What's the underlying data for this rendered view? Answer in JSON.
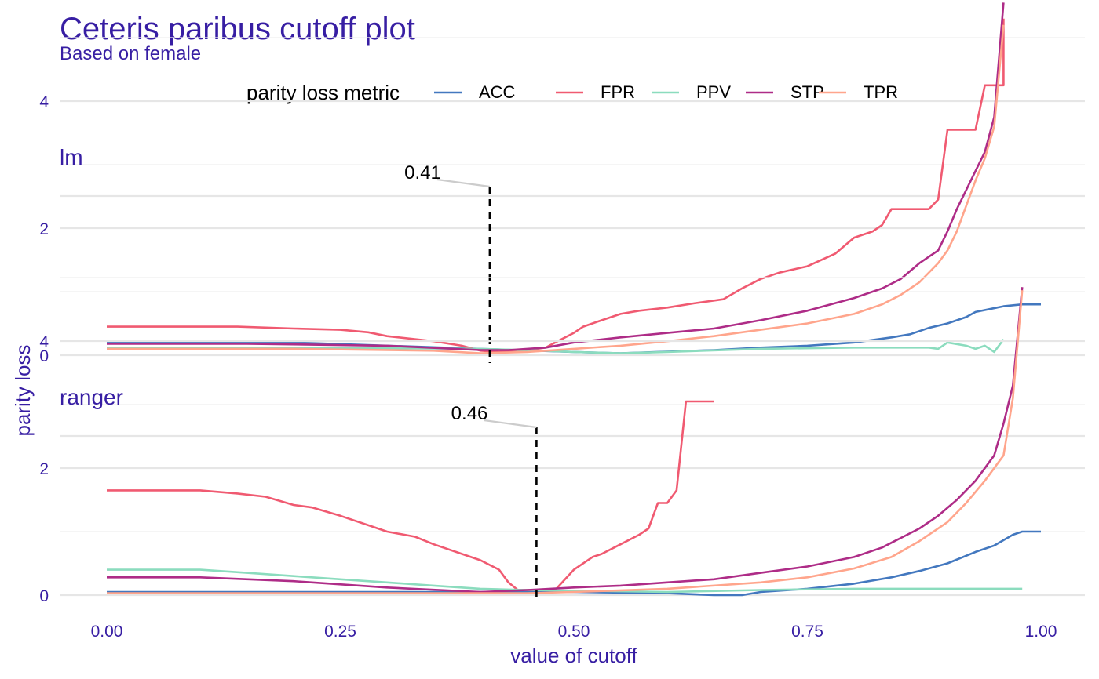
{
  "chart_data": {
    "type": "line",
    "title": "Ceteris paribus cutoff plot",
    "subtitle": "Based on female",
    "xlabel": "value of cutoff",
    "ylabel": "parity loss",
    "xlim": [
      0,
      1
    ],
    "ylim": [
      0,
      5.5
    ],
    "x_ticks": [
      "0.00",
      "0.25",
      "0.50",
      "0.75",
      "1.00"
    ],
    "y_ticks": [
      "0",
      "2",
      "4"
    ],
    "grid": true,
    "legend": {
      "title": "parity loss metric",
      "position": "top",
      "entries": [
        "ACC",
        "FPR",
        "PPV",
        "STP",
        "TPR"
      ]
    },
    "colors": {
      "ACC": "#4378bf",
      "FPR": "#f05a71",
      "PPV": "#8bdcbe",
      "STP": "#ae2c87",
      "TPR": "#ffa58c",
      "cutoff_line": "#000000",
      "annotation_leader": "#cccccc",
      "text": "#371ea3"
    },
    "panels": [
      {
        "label": "lm",
        "cutoff": 0.41,
        "cutoff_label": "0.41",
        "series": [
          {
            "name": "ACC",
            "points": [
              [
                0.0,
                0.2
              ],
              [
                0.2,
                0.2
              ],
              [
                0.4,
                0.1
              ],
              [
                0.5,
                0.05
              ],
              [
                0.55,
                0.03
              ],
              [
                0.65,
                0.08
              ],
              [
                0.7,
                0.12
              ],
              [
                0.75,
                0.15
              ],
              [
                0.8,
                0.2
              ],
              [
                0.84,
                0.28
              ],
              [
                0.86,
                0.33
              ],
              [
                0.88,
                0.43
              ],
              [
                0.9,
                0.5
              ],
              [
                0.92,
                0.6
              ],
              [
                0.93,
                0.68
              ],
              [
                0.96,
                0.77
              ],
              [
                0.98,
                0.8
              ],
              [
                1.0,
                0.8
              ]
            ]
          },
          {
            "name": "FPR",
            "points": [
              [
                0.0,
                0.45
              ],
              [
                0.1,
                0.45
              ],
              [
                0.14,
                0.45
              ],
              [
                0.2,
                0.42
              ],
              [
                0.25,
                0.4
              ],
              [
                0.28,
                0.36
              ],
              [
                0.3,
                0.3
              ],
              [
                0.35,
                0.22
              ],
              [
                0.38,
                0.15
              ],
              [
                0.4,
                0.07
              ],
              [
                0.42,
                0.05
              ],
              [
                0.45,
                0.08
              ],
              [
                0.47,
                0.12
              ],
              [
                0.48,
                0.2
              ],
              [
                0.5,
                0.35
              ],
              [
                0.51,
                0.45
              ],
              [
                0.53,
                0.55
              ],
              [
                0.55,
                0.65
              ],
              [
                0.57,
                0.7
              ],
              [
                0.6,
                0.75
              ],
              [
                0.63,
                0.82
              ],
              [
                0.66,
                0.88
              ],
              [
                0.68,
                1.05
              ],
              [
                0.7,
                1.2
              ],
              [
                0.72,
                1.3
              ],
              [
                0.75,
                1.4
              ],
              [
                0.78,
                1.6
              ],
              [
                0.8,
                1.85
              ],
              [
                0.82,
                1.95
              ],
              [
                0.83,
                2.05
              ],
              [
                0.84,
                2.3
              ],
              [
                0.88,
                2.3
              ],
              [
                0.89,
                2.45
              ],
              [
                0.9,
                3.55
              ],
              [
                0.93,
                3.55
              ],
              [
                0.94,
                4.25
              ],
              [
                0.96,
                4.25
              ],
              [
                0.96,
                5.3
              ]
            ]
          },
          {
            "name": "PPV",
            "points": [
              [
                0.0,
                0.12
              ],
              [
                0.2,
                0.12
              ],
              [
                0.4,
                0.1
              ],
              [
                0.45,
                0.08
              ],
              [
                0.5,
                0.05
              ],
              [
                0.55,
                0.03
              ],
              [
                0.6,
                0.05
              ],
              [
                0.7,
                0.1
              ],
              [
                0.8,
                0.12
              ],
              [
                0.88,
                0.12
              ],
              [
                0.89,
                0.1
              ],
              [
                0.9,
                0.2
              ],
              [
                0.92,
                0.15
              ],
              [
                0.93,
                0.1
              ],
              [
                0.94,
                0.15
              ],
              [
                0.95,
                0.05
              ],
              [
                0.96,
                0.25
              ]
            ]
          },
          {
            "name": "STP",
            "points": [
              [
                0.0,
                0.18
              ],
              [
                0.15,
                0.18
              ],
              [
                0.3,
                0.15
              ],
              [
                0.4,
                0.08
              ],
              [
                0.43,
                0.08
              ],
              [
                0.47,
                0.12
              ],
              [
                0.5,
                0.2
              ],
              [
                0.55,
                0.28
              ],
              [
                0.6,
                0.35
              ],
              [
                0.65,
                0.42
              ],
              [
                0.7,
                0.55
              ],
              [
                0.75,
                0.7
              ],
              [
                0.8,
                0.9
              ],
              [
                0.83,
                1.05
              ],
              [
                0.85,
                1.2
              ],
              [
                0.87,
                1.45
              ],
              [
                0.89,
                1.65
              ],
              [
                0.9,
                1.95
              ],
              [
                0.91,
                2.3
              ],
              [
                0.92,
                2.6
              ],
              [
                0.93,
                2.9
              ],
              [
                0.94,
                3.2
              ],
              [
                0.95,
                3.75
              ],
              [
                0.96,
                5.55
              ]
            ]
          },
          {
            "name": "TPR",
            "points": [
              [
                0.0,
                0.1
              ],
              [
                0.2,
                0.1
              ],
              [
                0.35,
                0.07
              ],
              [
                0.4,
                0.03
              ],
              [
                0.45,
                0.05
              ],
              [
                0.5,
                0.1
              ],
              [
                0.55,
                0.15
              ],
              [
                0.6,
                0.22
              ],
              [
                0.65,
                0.3
              ],
              [
                0.7,
                0.4
              ],
              [
                0.75,
                0.5
              ],
              [
                0.8,
                0.65
              ],
              [
                0.83,
                0.8
              ],
              [
                0.85,
                0.95
              ],
              [
                0.87,
                1.15
              ],
              [
                0.89,
                1.45
              ],
              [
                0.9,
                1.65
              ],
              [
                0.91,
                1.95
              ],
              [
                0.92,
                2.35
              ],
              [
                0.93,
                2.75
              ],
              [
                0.94,
                3.1
              ],
              [
                0.95,
                3.6
              ],
              [
                0.96,
                5.2
              ]
            ]
          }
        ]
      },
      {
        "label": "ranger",
        "cutoff": 0.46,
        "cutoff_label": "0.46",
        "series": [
          {
            "name": "ACC",
            "points": [
              [
                0.0,
                0.05
              ],
              [
                0.5,
                0.05
              ],
              [
                0.6,
                0.03
              ],
              [
                0.65,
                0.0
              ],
              [
                0.68,
                0.0
              ],
              [
                0.7,
                0.05
              ],
              [
                0.75,
                0.1
              ],
              [
                0.8,
                0.18
              ],
              [
                0.84,
                0.28
              ],
              [
                0.87,
                0.38
              ],
              [
                0.9,
                0.5
              ],
              [
                0.93,
                0.68
              ],
              [
                0.95,
                0.78
              ],
              [
                0.97,
                0.95
              ],
              [
                0.98,
                1.0
              ],
              [
                1.0,
                1.0
              ]
            ]
          },
          {
            "name": "FPR",
            "points": [
              [
                0.0,
                1.65
              ],
              [
                0.1,
                1.65
              ],
              [
                0.14,
                1.6
              ],
              [
                0.17,
                1.55
              ],
              [
                0.2,
                1.42
              ],
              [
                0.22,
                1.38
              ],
              [
                0.25,
                1.25
              ],
              [
                0.28,
                1.1
              ],
              [
                0.3,
                1.0
              ],
              [
                0.33,
                0.92
              ],
              [
                0.35,
                0.8
              ],
              [
                0.38,
                0.65
              ],
              [
                0.4,
                0.55
              ],
              [
                0.42,
                0.4
              ],
              [
                0.43,
                0.2
              ],
              [
                0.44,
                0.08
              ],
              [
                0.48,
                0.08
              ],
              [
                0.5,
                0.4
              ],
              [
                0.52,
                0.6
              ],
              [
                0.53,
                0.65
              ],
              [
                0.55,
                0.8
              ],
              [
                0.57,
                0.95
              ],
              [
                0.58,
                1.05
              ],
              [
                0.59,
                1.45
              ],
              [
                0.6,
                1.45
              ],
              [
                0.61,
                1.65
              ],
              [
                0.62,
                3.05
              ],
              [
                0.65,
                3.05
              ]
            ]
          },
          {
            "name": "PPV",
            "points": [
              [
                0.0,
                0.4
              ],
              [
                0.1,
                0.4
              ],
              [
                0.15,
                0.35
              ],
              [
                0.2,
                0.3
              ],
              [
                0.25,
                0.25
              ],
              [
                0.3,
                0.2
              ],
              [
                0.35,
                0.15
              ],
              [
                0.4,
                0.1
              ],
              [
                0.45,
                0.08
              ],
              [
                0.5,
                0.07
              ],
              [
                0.6,
                0.05
              ],
              [
                0.7,
                0.08
              ],
              [
                0.8,
                0.1
              ],
              [
                0.9,
                0.1
              ],
              [
                0.98,
                0.1
              ]
            ]
          },
          {
            "name": "STP",
            "points": [
              [
                0.0,
                0.28
              ],
              [
                0.1,
                0.28
              ],
              [
                0.2,
                0.22
              ],
              [
                0.3,
                0.12
              ],
              [
                0.4,
                0.05
              ],
              [
                0.45,
                0.08
              ],
              [
                0.5,
                0.12
              ],
              [
                0.55,
                0.15
              ],
              [
                0.6,
                0.2
              ],
              [
                0.65,
                0.25
              ],
              [
                0.7,
                0.35
              ],
              [
                0.75,
                0.45
              ],
              [
                0.8,
                0.6
              ],
              [
                0.83,
                0.75
              ],
              [
                0.85,
                0.9
              ],
              [
                0.87,
                1.05
              ],
              [
                0.89,
                1.25
              ],
              [
                0.91,
                1.5
              ],
              [
                0.93,
                1.8
              ],
              [
                0.95,
                2.2
              ],
              [
                0.96,
                2.7
              ],
              [
                0.97,
                3.3
              ],
              [
                0.98,
                4.85
              ]
            ]
          },
          {
            "name": "TPR",
            "points": [
              [
                0.0,
                0.03
              ],
              [
                0.45,
                0.03
              ],
              [
                0.5,
                0.05
              ],
              [
                0.6,
                0.1
              ],
              [
                0.7,
                0.2
              ],
              [
                0.75,
                0.28
              ],
              [
                0.8,
                0.42
              ],
              [
                0.84,
                0.6
              ],
              [
                0.87,
                0.85
              ],
              [
                0.9,
                1.15
              ],
              [
                0.92,
                1.45
              ],
              [
                0.94,
                1.8
              ],
              [
                0.96,
                2.2
              ],
              [
                0.97,
                3.1
              ],
              [
                0.98,
                4.8
              ]
            ]
          }
        ]
      }
    ]
  }
}
